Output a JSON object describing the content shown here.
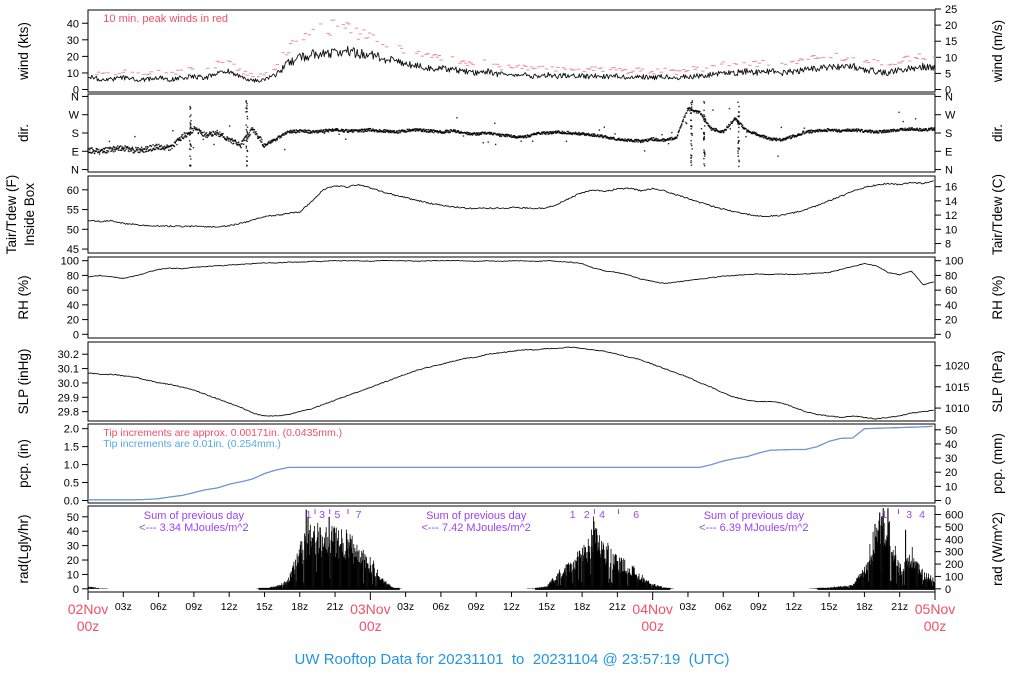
{
  "title": "UW Rooftop Data for 20231101  to  20231104 @ 23:57:19  (UTC)",
  "colors": {
    "accent_red": "#ef5068",
    "peak_dash_red": "#f08da0",
    "title_blue": "#2196e0",
    "pcp_line_blue": "#6b96d2",
    "pcp_note_blue": "#54a8e8",
    "purple": "#9b44ee",
    "trace_black": "#111111"
  },
  "x_axis": {
    "day_labels": [
      {
        "h": 0,
        "line1": "02Nov",
        "line2": "00z"
      },
      {
        "h": 24,
        "line1": "03Nov",
        "line2": "00z"
      },
      {
        "h": 48,
        "line1": "04Nov",
        "line2": "00z"
      },
      {
        "h": 72,
        "line1": "05Nov",
        "line2": "00z"
      }
    ],
    "intraday_labels": [
      "03z",
      "06z",
      "09z",
      "12z",
      "15z",
      "18z",
      "21z"
    ]
  },
  "panels": [
    {
      "key": "wind",
      "label_left": "wind (kts)",
      "label_right": "wind (m/s)",
      "left_ticks": [
        [
          0,
          "0"
        ],
        [
          10,
          "10"
        ],
        [
          20,
          "20"
        ],
        [
          30,
          "30"
        ],
        [
          40,
          "40"
        ]
      ],
      "right_ticks": [
        [
          0,
          "0"
        ],
        [
          9.72,
          "5"
        ],
        [
          19.44,
          "10"
        ],
        [
          29.16,
          "15"
        ],
        [
          38.88,
          "20"
        ],
        [
          48.6,
          "25"
        ]
      ]
    },
    {
      "key": "dir",
      "label_left": "dir.",
      "label_right": "dir.",
      "left_ticks": [
        [
          0,
          "N"
        ],
        [
          90,
          "E"
        ],
        [
          180,
          "S"
        ],
        [
          270,
          "W"
        ],
        [
          360,
          "N"
        ]
      ],
      "right_ticks": [
        [
          0,
          "N"
        ],
        [
          90,
          "E"
        ],
        [
          180,
          "S"
        ],
        [
          270,
          "W"
        ],
        [
          360,
          "N"
        ]
      ]
    },
    {
      "key": "temp",
      "label_left": [
        "Tair/Tdew (F)",
        "Inside Box"
      ],
      "label_right": "Tair/Tdew (C)",
      "left_ticks": [
        [
          45,
          "45"
        ],
        [
          50,
          "50"
        ],
        [
          55,
          "55"
        ],
        [
          60,
          "60"
        ]
      ],
      "right_ticks": [
        [
          46.4,
          "8"
        ],
        [
          50,
          "10"
        ],
        [
          53.6,
          "12"
        ],
        [
          57.2,
          "14"
        ],
        [
          60.8,
          "16"
        ]
      ]
    },
    {
      "key": "rh",
      "label_left": "RH (%)",
      "label_right": "RH (%)",
      "left_ticks": [
        [
          0,
          "0"
        ],
        [
          20,
          "20"
        ],
        [
          40,
          "40"
        ],
        [
          60,
          "60"
        ],
        [
          80,
          "80"
        ],
        [
          100,
          "100"
        ]
      ],
      "right_ticks": [
        [
          0,
          "0"
        ],
        [
          20,
          "20"
        ],
        [
          40,
          "40"
        ],
        [
          60,
          "60"
        ],
        [
          80,
          "80"
        ],
        [
          100,
          "100"
        ]
      ]
    },
    {
      "key": "slp",
      "label_left": "SLP (inHg)",
      "label_right": "SLP (hPa)",
      "left_ticks": [
        [
          29.8,
          "29.8"
        ],
        [
          29.9,
          "29.9"
        ],
        [
          30.0,
          "30.0"
        ],
        [
          30.1,
          "30.1"
        ],
        [
          30.2,
          "30.2"
        ]
      ],
      "right_ticks": [
        [
          29.825,
          "1010"
        ],
        [
          29.973,
          "1015"
        ],
        [
          30.12,
          "1020"
        ]
      ]
    },
    {
      "key": "pcp",
      "label_left": "pcp. (in)",
      "label_right": "pcp. (mm)",
      "left_ticks": [
        [
          0,
          "0.0"
        ],
        [
          0.5,
          "0.5"
        ],
        [
          1.0,
          "1.0"
        ],
        [
          1.5,
          "1.5"
        ],
        [
          2.0,
          "2.0"
        ]
      ],
      "right_ticks": [
        [
          0,
          "0"
        ],
        [
          0.3937,
          "10"
        ],
        [
          0.7874,
          "20"
        ],
        [
          1.1811,
          "30"
        ],
        [
          1.5748,
          "40"
        ],
        [
          1.9685,
          "50"
        ]
      ]
    },
    {
      "key": "rad",
      "label_left": "rad(Lgly/hr)",
      "label_right": "rad (W/m^2)",
      "left_ticks": [
        [
          0,
          "0"
        ],
        [
          10,
          "10"
        ],
        [
          20,
          "20"
        ],
        [
          30,
          "30"
        ],
        [
          40,
          "40"
        ],
        [
          50,
          "50"
        ]
      ],
      "right_ticks": [
        [
          0,
          "0"
        ],
        [
          8.6,
          "100"
        ],
        [
          17.2,
          "200"
        ],
        [
          25.8,
          "300"
        ],
        [
          34.4,
          "400"
        ],
        [
          43.0,
          "500"
        ],
        [
          51.6,
          "600"
        ]
      ]
    }
  ],
  "annotations": {
    "wind_note": "10 min. peak winds in red",
    "pcp_note_red": "Tip increments are approx. 0.00171in. (0.0435mm.)",
    "pcp_note_blue": "Tip increments are 0.01in. (0.254mm.)",
    "rad_sums": [
      {
        "center_h": 9.0,
        "line1": "Sum of previous day",
        "line2": "<--- 3.34 MJoules/m^2"
      },
      {
        "center_h": 33.0,
        "line1": "Sum of previous day",
        "line2": "<--- 7.42 MJoules/m^2"
      },
      {
        "center_h": 56.6,
        "line1": "Sum of previous day",
        "line2": "<--- 6.39 MJoules/m^2"
      }
    ],
    "rad_digits": [
      {
        "h": 18.75,
        "t": "1"
      },
      {
        "h": 19.9,
        "t": "3"
      },
      {
        "h": 21.2,
        "t": "5"
      },
      {
        "h": 23.0,
        "t": "7"
      },
      {
        "h": 41.2,
        "t": "1"
      },
      {
        "h": 42.4,
        "t": "2"
      },
      {
        "h": 43.7,
        "t": "4"
      },
      {
        "h": 46.6,
        "t": "6"
      },
      {
        "h": 67.7,
        "t": "1"
      },
      {
        "h": 69.8,
        "t": "3"
      },
      {
        "h": 70.9,
        "t": "4"
      }
    ],
    "rad_digit_ticks": [
      19.3,
      20.55,
      22.1,
      43.05,
      45.1,
      68.9
    ]
  },
  "chart_data": {
    "type": "line",
    "title": "UW Rooftop Data for 20231101 to 20231104 @ 23:57:19 (UTC)",
    "x_unit": "hours since 2023-11-02 00z",
    "x_range": [
      0,
      72
    ],
    "x_tick_step_hours": 3,
    "grid": false,
    "series": [
      {
        "name": "wind_kts",
        "panel": "wind",
        "ylim": [
          0,
          48
        ],
        "values": [
          8,
          6,
          6,
          7,
          6,
          6,
          7,
          6,
          7,
          8,
          7,
          10,
          11,
          7,
          5,
          6,
          9,
          16,
          19,
          21,
          22,
          22,
          24,
          21,
          22,
          19,
          17,
          15,
          14,
          13,
          13,
          12,
          11,
          10,
          11,
          9,
          9,
          9,
          8,
          9,
          8,
          9,
          8,
          8,
          8,
          8,
          7,
          8,
          7,
          8,
          7,
          8,
          8,
          9,
          10,
          10,
          11,
          10,
          11,
          10,
          11,
          12,
          13,
          14,
          13,
          14,
          12,
          11,
          10,
          12,
          13,
          14,
          13
        ]
      },
      {
        "name": "peak_wind_offset_kts",
        "panel": "wind",
        "values": [
          4,
          3,
          3,
          4,
          3,
          3,
          4,
          3,
          4,
          4,
          4,
          5,
          6,
          4,
          3,
          3,
          5,
          8,
          10,
          12,
          13,
          15,
          14,
          12,
          10,
          9,
          8,
          7,
          7,
          6,
          6,
          6,
          5,
          5,
          5,
          4,
          4,
          4,
          4,
          4,
          4,
          4,
          4,
          4,
          4,
          4,
          3,
          4,
          3,
          4,
          3,
          4,
          4,
          4,
          5,
          5,
          5,
          5,
          5,
          5,
          5,
          6,
          6,
          6,
          6,
          6,
          5,
          5,
          5,
          5,
          6,
          6,
          6
        ]
      },
      {
        "name": "wind_dir_deg",
        "panel": "dir",
        "ylim": [
          0,
          360
        ],
        "values": [
          95,
          90,
          100,
          105,
          95,
          100,
          115,
          105,
          160,
          200,
          170,
          180,
          150,
          120,
          200,
          120,
          150,
          185,
          190,
          185,
          190,
          195,
          190,
          190,
          195,
          190,
          185,
          190,
          195,
          190,
          185,
          190,
          180,
          175,
          180,
          170,
          165,
          160,
          175,
          180,
          185,
          180,
          175,
          170,
          160,
          150,
          145,
          140,
          150,
          145,
          155,
          300,
          280,
          200,
          185,
          250,
          190,
          170,
          150,
          145,
          165,
          185,
          190,
          195,
          190,
          195,
          190,
          185,
          190,
          195,
          200,
          195,
          200
        ],
        "streak_hours": [
          8.7,
          13.5,
          51.3,
          52.4,
          55.3
        ]
      },
      {
        "name": "tair_f",
        "panel": "temp",
        "ylim": [
          45,
          63
        ],
        "values": [
          52.3,
          52.0,
          52.2,
          51.5,
          51.2,
          51.0,
          50.9,
          50.8,
          50.7,
          50.8,
          50.6,
          50.7,
          50.9,
          51.5,
          52.3,
          53.3,
          53.5,
          54.0,
          54.4,
          57.0,
          60.0,
          61.0,
          60.7,
          61.3,
          60.5,
          59.5,
          58.7,
          58.0,
          57.3,
          56.6,
          56.1,
          55.7,
          55.4,
          55.2,
          55.4,
          55.3,
          55.5,
          55.4,
          55.3,
          55.4,
          56.5,
          58.0,
          59.3,
          60.0,
          59.6,
          60.2,
          60.4,
          59.8,
          60.3,
          59.7,
          58.8,
          57.8,
          56.8,
          55.9,
          55.1,
          54.4,
          53.8,
          53.4,
          53.3,
          53.6,
          54.2,
          55.0,
          56.0,
          57.2,
          58.4,
          59.6,
          60.6,
          61.2,
          61.6,
          61.3,
          61.9,
          61.6,
          62.3
        ]
      },
      {
        "name": "rh_pct",
        "panel": "rh",
        "ylim": [
          0,
          100
        ],
        "values": [
          78,
          80,
          78,
          76,
          79,
          84,
          88,
          90,
          89,
          91,
          92,
          93,
          94,
          95,
          96,
          97,
          97,
          98,
          98,
          99,
          99,
          100,
          100,
          100,
          99,
          100,
          100,
          100,
          99,
          100,
          100,
          100,
          100,
          99,
          100,
          99,
          100,
          100,
          99,
          100,
          99,
          98,
          96,
          90,
          86,
          84,
          80,
          75,
          72,
          69,
          71,
          73,
          75,
          77,
          79,
          80,
          81,
          82,
          81,
          82,
          81,
          82,
          83,
          84,
          88,
          92,
          96,
          93,
          84,
          81,
          86,
          67,
          72
        ]
      },
      {
        "name": "slp_inhg",
        "panel": "slp",
        "ylim": [
          29.75,
          30.27
        ],
        "values": [
          30.07,
          30.06,
          30.06,
          30.05,
          30.04,
          30.02,
          30.0,
          29.99,
          29.97,
          29.95,
          29.92,
          29.89,
          29.86,
          29.83,
          29.79,
          29.77,
          29.77,
          29.78,
          29.8,
          29.82,
          29.85,
          29.88,
          29.91,
          29.94,
          29.97,
          30.0,
          30.03,
          30.06,
          30.09,
          30.11,
          30.13,
          30.15,
          30.17,
          30.18,
          30.2,
          30.21,
          30.22,
          30.23,
          30.23,
          30.24,
          30.24,
          30.25,
          30.24,
          30.23,
          30.22,
          30.2,
          30.18,
          30.16,
          30.13,
          30.1,
          30.07,
          30.04,
          30.0,
          29.97,
          29.93,
          29.9,
          29.88,
          29.87,
          29.87,
          29.86,
          29.83,
          29.8,
          29.78,
          29.77,
          29.76,
          29.77,
          29.76,
          29.75,
          29.76,
          29.77,
          29.79,
          29.8,
          29.81
        ]
      },
      {
        "name": "pcp_in",
        "panel": "pcp",
        "ylim": [
          0,
          2.1
        ],
        "values": [
          0.02,
          0.02,
          0.02,
          0.02,
          0.02,
          0.03,
          0.05,
          0.1,
          0.14,
          0.22,
          0.3,
          0.35,
          0.45,
          0.52,
          0.6,
          0.75,
          0.85,
          0.92,
          0.92,
          0.92,
          0.92,
          0.92,
          0.92,
          0.92,
          0.92,
          0.92,
          0.92,
          0.92,
          0.92,
          0.92,
          0.92,
          0.92,
          0.92,
          0.92,
          0.92,
          0.92,
          0.92,
          0.92,
          0.92,
          0.92,
          0.92,
          0.92,
          0.92,
          0.92,
          0.92,
          0.92,
          0.92,
          0.92,
          0.92,
          0.92,
          0.92,
          0.92,
          0.92,
          1.0,
          1.1,
          1.17,
          1.22,
          1.32,
          1.4,
          1.41,
          1.42,
          1.42,
          1.5,
          1.65,
          1.73,
          1.74,
          2.0,
          2.01,
          2.02,
          2.03,
          2.04,
          2.05,
          2.07
        ]
      },
      {
        "name": "rad_lyhr",
        "panel": "rad",
        "ylim": [
          0,
          57
        ],
        "values": [
          2,
          0.5,
          0,
          0,
          0,
          0,
          0,
          0,
          0,
          0,
          0,
          0,
          0,
          0,
          0,
          0.5,
          2,
          6,
          30,
          45,
          43,
          44,
          38,
          32,
          22,
          8,
          0.5,
          0,
          0,
          0,
          0,
          0,
          0,
          0,
          0,
          0,
          0,
          0,
          0.5,
          2,
          12,
          18,
          28,
          47,
          32,
          22,
          18,
          10,
          4,
          1,
          0,
          0,
          0,
          0,
          0,
          0,
          0,
          0,
          0,
          0,
          0,
          0,
          0.5,
          1,
          2,
          3,
          15,
          45,
          50,
          15,
          30,
          12,
          8
        ],
        "spikes": [
          {
            "h": 18.55,
            "v": 55
          },
          {
            "h": 18.7,
            "v": 50
          },
          {
            "h": 20.5,
            "v": 50
          },
          {
            "h": 43.0,
            "v": 47
          },
          {
            "h": 66.9,
            "v": 45
          },
          {
            "h": 67.3,
            "v": 53
          },
          {
            "h": 67.6,
            "v": 56
          },
          {
            "h": 68.0,
            "v": 56
          },
          {
            "h": 69.5,
            "v": 41
          }
        ]
      }
    ]
  }
}
